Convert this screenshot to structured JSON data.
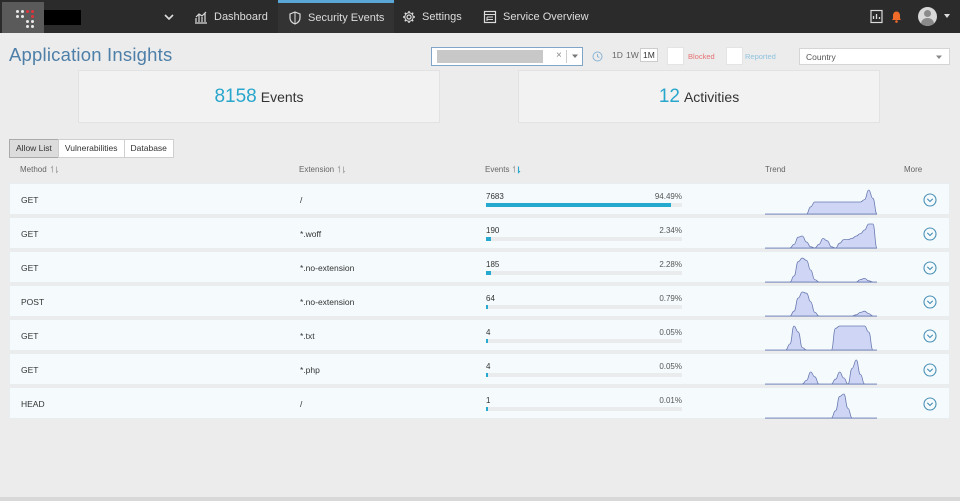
{
  "nav": {
    "items": [
      {
        "label": "Dashboard",
        "icon": "chart-icon"
      },
      {
        "label": "Security Events",
        "icon": "shield-icon",
        "active": true
      },
      {
        "label": "Settings",
        "icon": "gear-icon"
      },
      {
        "label": "Service Overview",
        "icon": "overview-icon"
      }
    ],
    "accent_color": "#5aa6d6",
    "bell_color": "#f06a2a"
  },
  "page": {
    "title": "Application Insights"
  },
  "filters": {
    "clear_symbol": "×",
    "ranges": [
      "1D",
      "1W",
      "1M"
    ],
    "active_range": "1M",
    "blocked_label": "Blocked",
    "blocked_color": "#e57373",
    "reported_label": "Reported",
    "reported_color": "#8fc3de",
    "country_placeholder": "Country"
  },
  "stats": {
    "events": {
      "value": "8158",
      "label": "Events"
    },
    "activities": {
      "value": "12",
      "label": "Activities"
    }
  },
  "tabs": [
    "Allow List",
    "Vulnerabilities",
    "Database"
  ],
  "active_tab": "Allow List",
  "table": {
    "columns": {
      "method": "Method",
      "extension": "Extension",
      "events": "Events",
      "trend": "Trend",
      "more": "More"
    },
    "rows": [
      {
        "method": "GET",
        "extension": "/",
        "count": "7683",
        "pct": "94.49%",
        "fraction": 0.9449,
        "trend": [
          0,
          0,
          0,
          0,
          0,
          0,
          0,
          0,
          0,
          0,
          0,
          0.6,
          1,
          1,
          1,
          1,
          1,
          1,
          1,
          1,
          1,
          1,
          1,
          1,
          1.2,
          2,
          1.3,
          0
        ]
      },
      {
        "method": "GET",
        "extension": "*.woff",
        "count": "190",
        "pct": "2.34%",
        "fraction": 0.0234,
        "trend": [
          0,
          0,
          0,
          0,
          0,
          0,
          0,
          0.3,
          0.9,
          1,
          0.5,
          0.1,
          0,
          0.3,
          0.8,
          0.6,
          0.1,
          0,
          0.4,
          0.7,
          0.7,
          0.8,
          1,
          1.2,
          1.5,
          2,
          2,
          0
        ]
      },
      {
        "method": "GET",
        "extension": "*.no-extension",
        "count": "185",
        "pct": "2.28%",
        "fraction": 0.0228,
        "trend": [
          0,
          0,
          0,
          0,
          0,
          0,
          0,
          0.5,
          1.7,
          2,
          1.8,
          1,
          0.2,
          0,
          0,
          0,
          0,
          0,
          0,
          0,
          0,
          0,
          0,
          0.2,
          0.3,
          0.1,
          0,
          0
        ]
      },
      {
        "method": "POST",
        "extension": "*.no-extension",
        "count": "64",
        "pct": "0.79%",
        "fraction": 0.0079,
        "trend": [
          0,
          0,
          0,
          0,
          0,
          0,
          0,
          0.4,
          1.5,
          2,
          1.9,
          1.2,
          0.3,
          0,
          0,
          0,
          0,
          0,
          0,
          0,
          0,
          0,
          0.1,
          0.3,
          0.4,
          0.2,
          0,
          0
        ]
      },
      {
        "method": "GET",
        "extension": "*.txt",
        "count": "4",
        "pct": "0.05%",
        "fraction": 0.0005,
        "trend": [
          0,
          0,
          0,
          0,
          0,
          0,
          0.5,
          2,
          1.5,
          0.2,
          0,
          0,
          0,
          0,
          0,
          0,
          0,
          1.8,
          2,
          2,
          2,
          2,
          2,
          2,
          2,
          1.5,
          0,
          0
        ]
      },
      {
        "method": "GET",
        "extension": "*.php",
        "count": "4",
        "pct": "0.05%",
        "fraction": 0.0005,
        "trend": [
          0,
          0,
          0,
          0,
          0,
          0,
          0,
          0,
          0,
          0,
          0.3,
          1,
          0.6,
          0,
          0,
          0,
          0,
          0.4,
          1,
          0.5,
          0,
          1.3,
          2,
          0.8,
          0,
          0,
          0,
          0
        ]
      },
      {
        "method": "HEAD",
        "extension": "/",
        "count": "1",
        "pct": "0.01%",
        "fraction": 0.0001,
        "trend": [
          0,
          0,
          0,
          0,
          0,
          0,
          0,
          0,
          0,
          0,
          0,
          0,
          0,
          0,
          0,
          0,
          0,
          0.6,
          1.8,
          2,
          0.8,
          0,
          0,
          0,
          0,
          0,
          0,
          0
        ]
      }
    ]
  },
  "colors": {
    "title": "#4d7fa8",
    "stat_number": "#29a6cc",
    "bar": "#25a9cf",
    "trend_fill": "#cfd6f5",
    "trend_stroke": "#6a7ab0",
    "more_icon": "#4a90b8"
  }
}
